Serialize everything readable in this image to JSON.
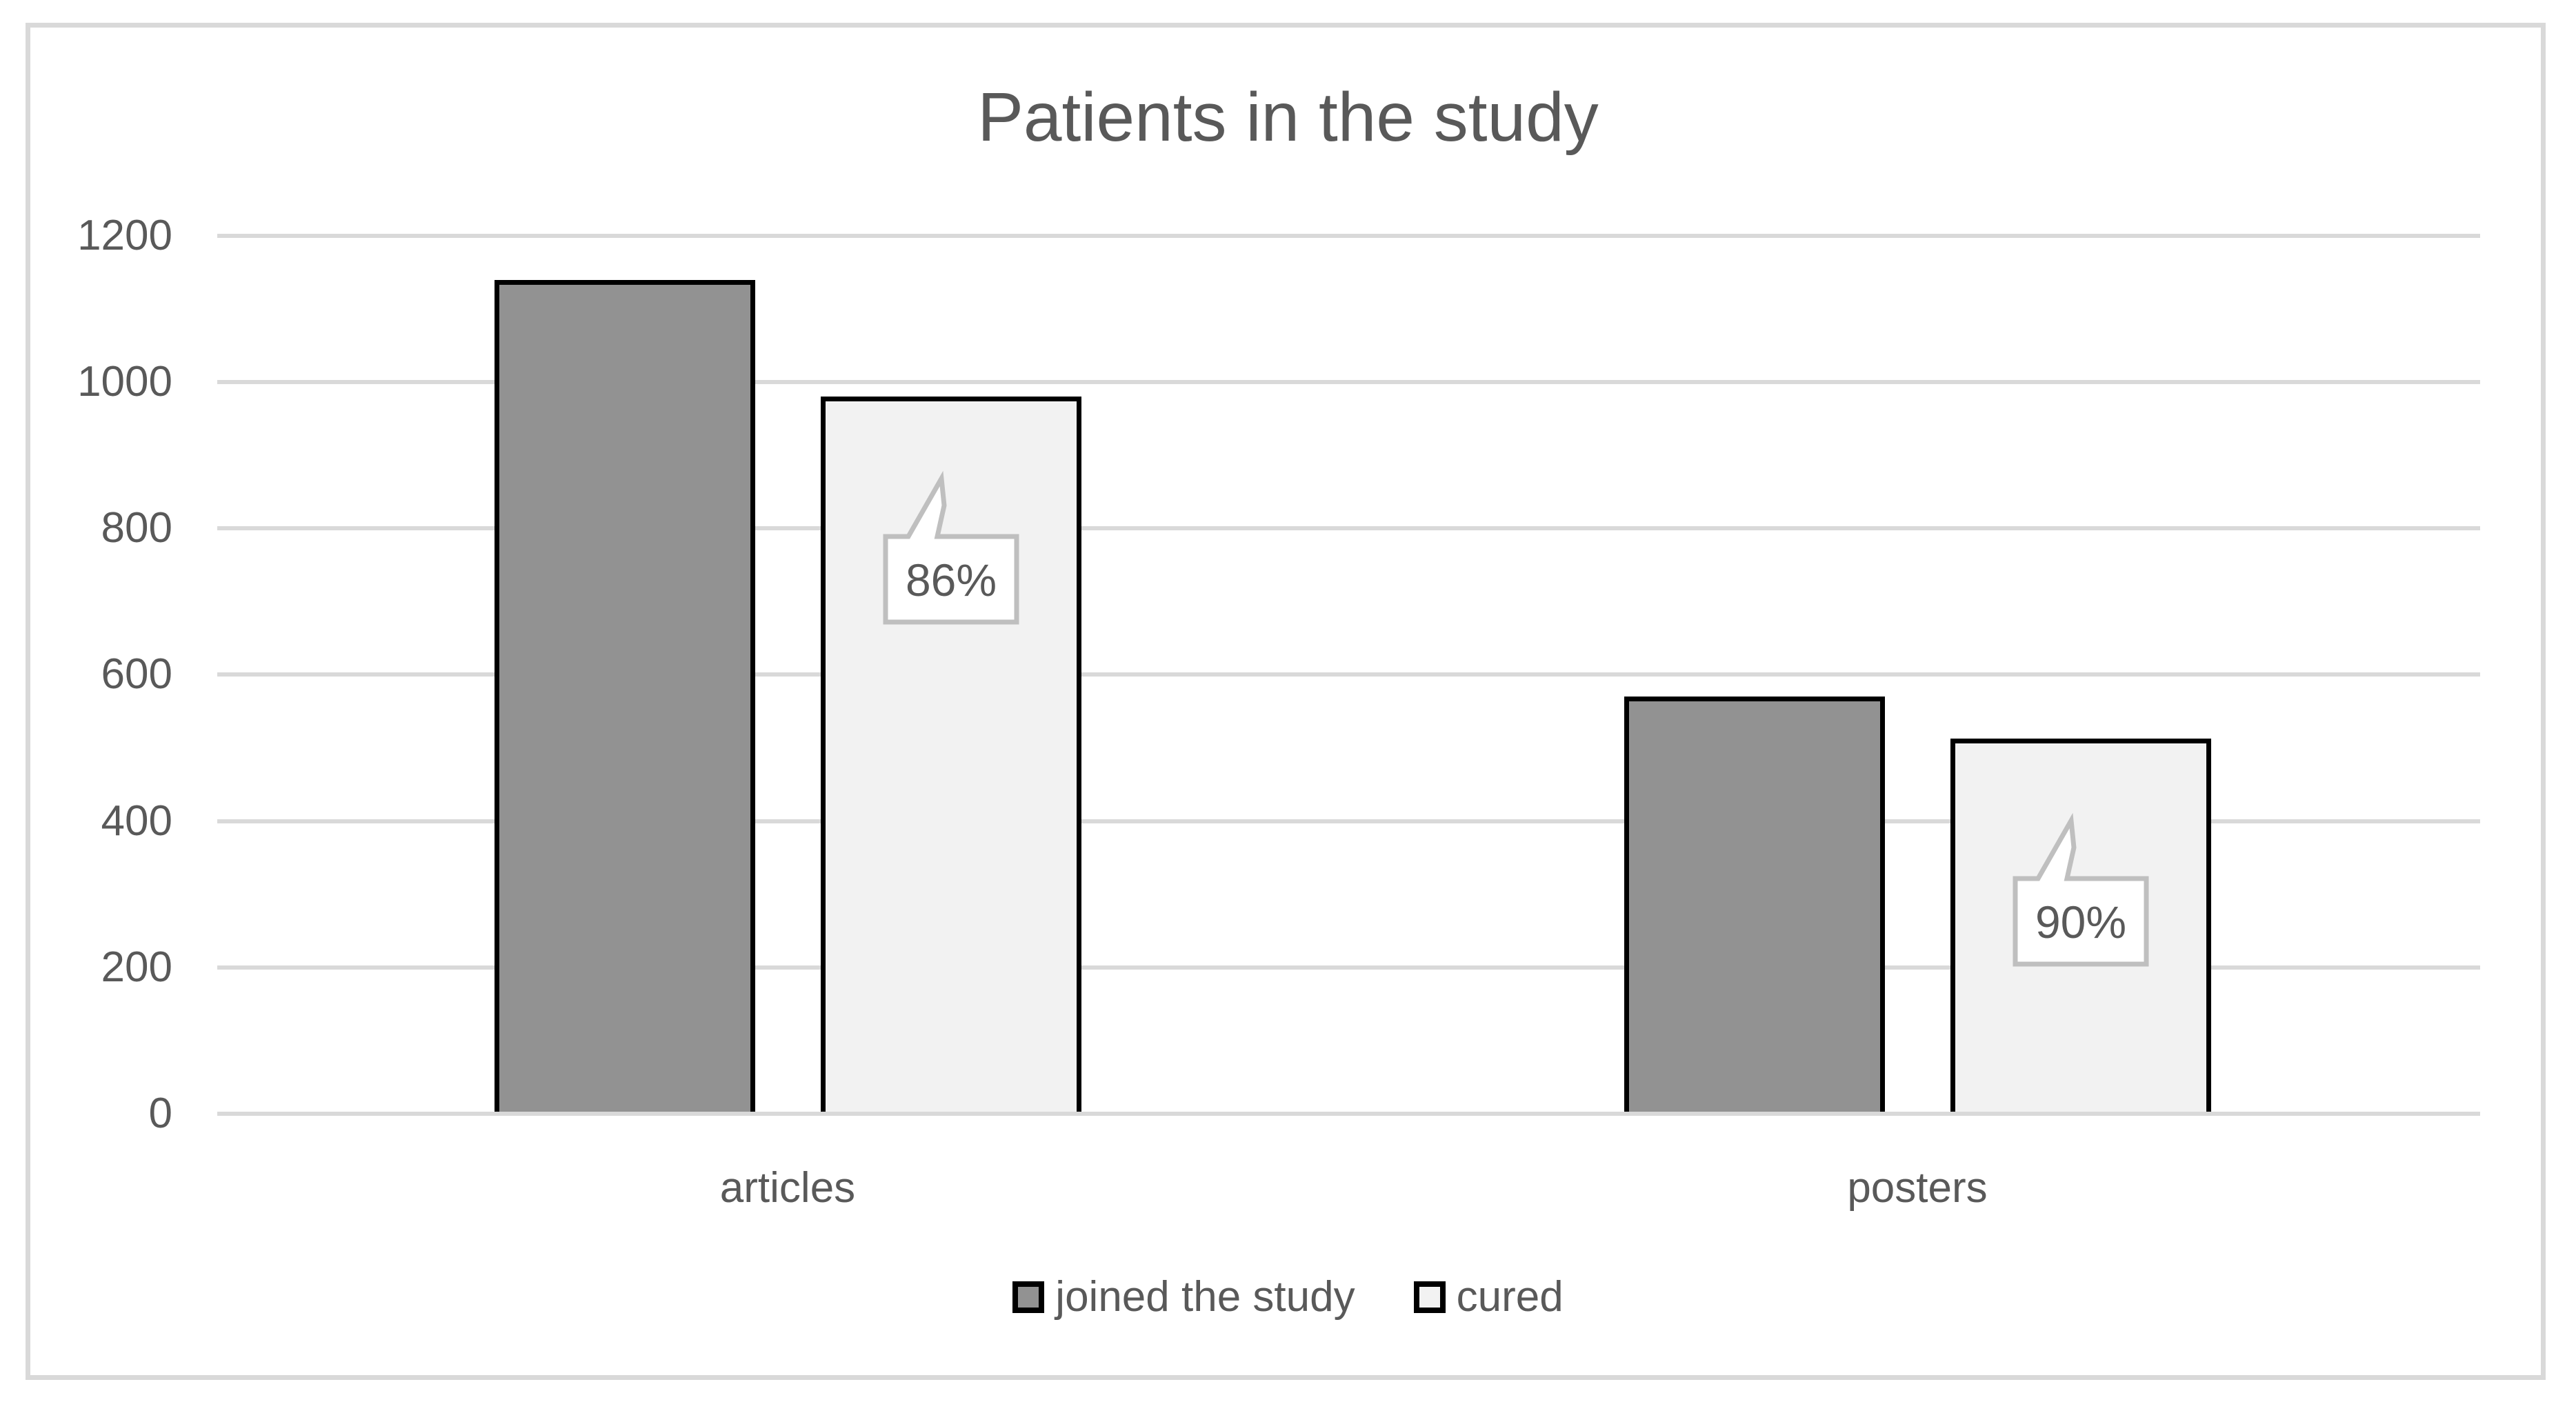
{
  "chart_data": {
    "type": "bar",
    "title": "Patients in the study",
    "categories": [
      "articles",
      "posters"
    ],
    "series": [
      {
        "name": "joined the study",
        "values": [
          1140,
          570
        ]
      },
      {
        "name": "cured",
        "values": [
          980,
          513
        ],
        "data_labels": [
          "86%",
          "90%"
        ]
      }
    ],
    "ylim": [
      0,
      1200
    ],
    "yticks": [
      0,
      200,
      400,
      600,
      800,
      1000,
      1200
    ],
    "grid": true,
    "legend_position": "bottom",
    "colors": {
      "series_joined_fill": "#929292",
      "series_cured_fill": "#F2F2F2",
      "bar_border": "#000000",
      "gridline": "#D9D9D9",
      "frame_border": "#D9D9D9",
      "text": "#595959",
      "callout_border": "#BFBFBF",
      "callout_fill": "#FFFFFF",
      "background": "#FFFFFF"
    }
  }
}
